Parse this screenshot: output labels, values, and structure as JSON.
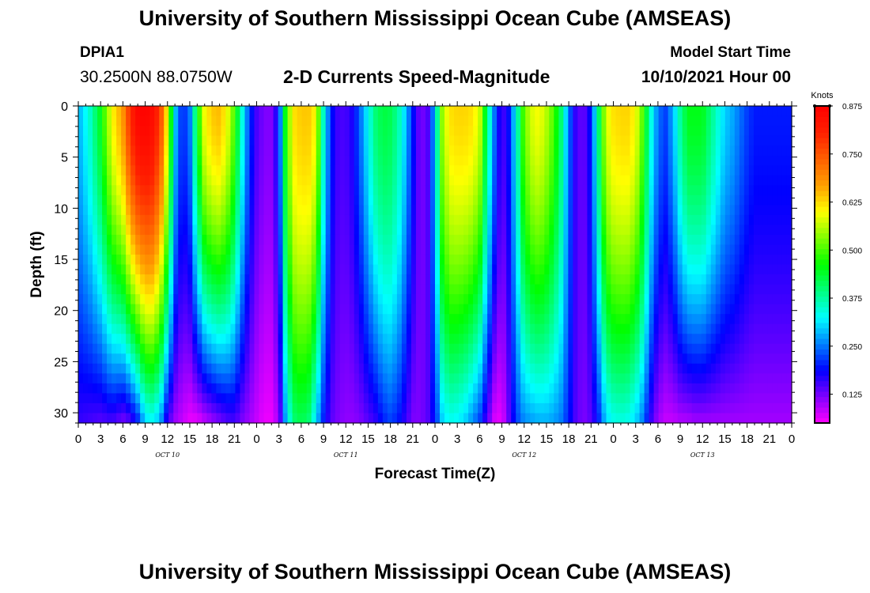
{
  "header": {
    "title": "University of Southern Mississippi Ocean Cube (AMSEAS)",
    "station_id": "DPIA1",
    "station_coords": "30.2500N  88.0750W",
    "product_title": "2-D Currents Speed-Magnitude",
    "model_start_label": "Model Start Time",
    "model_start_value": "10/10/2021 Hour 00"
  },
  "footer": {
    "title": "University of Southern Mississippi Ocean Cube (AMSEAS)"
  },
  "chart_data": {
    "type": "heatmap",
    "title": "2-D Currents Speed-Magnitude",
    "xlabel": "Forecast Time(Z)",
    "ylabel": "Depth (ft)",
    "x_tick_labels": [
      "0",
      "3",
      "6",
      "9",
      "12",
      "15",
      "18",
      "21",
      "0",
      "3",
      "6",
      "9",
      "12",
      "15",
      "18",
      "21",
      "0",
      "3",
      "6",
      "9",
      "12",
      "15",
      "18",
      "21",
      "0",
      "3",
      "6",
      "9",
      "12",
      "15",
      "18",
      "21",
      "0"
    ],
    "date_labels": [
      "OCT 10",
      "OCT 11",
      "OCT 12",
      "OCT 13"
    ],
    "xlim_hours": [
      0,
      96
    ],
    "ylim": [
      0,
      31
    ],
    "y_ticks": [
      0,
      5,
      10,
      15,
      20,
      25,
      30
    ],
    "y_reversed": true,
    "colorbar": {
      "unit": "Knots",
      "range": [
        0.05,
        0.875
      ],
      "ticks": [
        "0.875",
        "0.750",
        "0.625",
        "0.500",
        "0.375",
        "0.250",
        "0.125"
      ],
      "colors": [
        "#ff00ff",
        "#8000ff",
        "#0000ff",
        "#0080ff",
        "#00ffff",
        "#00ff80",
        "#00ff00",
        "#80ff00",
        "#ffff00",
        "#ffa000",
        "#ff6000",
        "#ff2000",
        "#ff0000"
      ]
    },
    "column_profiles": {
      "hours": [
        0,
        1.5,
        3,
        4.5,
        6,
        7,
        8,
        9,
        10,
        11,
        12,
        13,
        14,
        15,
        16,
        17,
        18,
        19,
        20,
        21,
        22,
        23,
        24,
        25,
        26,
        27,
        28,
        29,
        30,
        31,
        32,
        33,
        34,
        35,
        36,
        37,
        38,
        39,
        40,
        41,
        42,
        43,
        44,
        45,
        46,
        47,
        48,
        49,
        50,
        51,
        52,
        53,
        54,
        55,
        56,
        57,
        58,
        59,
        60,
        61,
        62,
        63,
        64,
        65,
        66,
        67,
        68,
        69,
        70,
        71,
        72,
        73,
        74,
        75,
        76,
        77,
        78,
        79,
        80,
        81,
        82,
        83,
        84,
        85,
        86,
        87,
        88,
        89,
        90,
        91,
        92,
        93,
        94,
        95,
        96
      ],
      "surface_knots": [
        0.28,
        0.35,
        0.45,
        0.6,
        0.68,
        0.8,
        0.86,
        0.87,
        0.85,
        0.78,
        0.6,
        0.3,
        0.2,
        0.25,
        0.45,
        0.6,
        0.64,
        0.65,
        0.6,
        0.5,
        0.35,
        0.22,
        0.15,
        0.12,
        0.12,
        0.2,
        0.5,
        0.62,
        0.64,
        0.64,
        0.6,
        0.35,
        0.2,
        0.15,
        0.15,
        0.18,
        0.25,
        0.33,
        0.4,
        0.43,
        0.42,
        0.38,
        0.3,
        0.2,
        0.12,
        0.14,
        0.3,
        0.55,
        0.62,
        0.63,
        0.63,
        0.62,
        0.58,
        0.4,
        0.25,
        0.14,
        0.2,
        0.35,
        0.52,
        0.58,
        0.6,
        0.56,
        0.5,
        0.4,
        0.25,
        0.15,
        0.13,
        0.2,
        0.4,
        0.58,
        0.62,
        0.63,
        0.63,
        0.6,
        0.5,
        0.35,
        0.25,
        0.22,
        0.28,
        0.38,
        0.45,
        0.45,
        0.45,
        0.4,
        0.35,
        0.3,
        0.28,
        0.25,
        0.22,
        0.2,
        0.2,
        0.2,
        0.2,
        0.2,
        0.2
      ],
      "bottom_knots": [
        0.16,
        0.15,
        0.14,
        0.15,
        0.12,
        0.14,
        0.2,
        0.3,
        0.32,
        0.28,
        0.15,
        0.1,
        0.08,
        0.06,
        0.06,
        0.08,
        0.1,
        0.12,
        0.14,
        0.15,
        0.12,
        0.1,
        0.08,
        0.06,
        0.06,
        0.1,
        0.3,
        0.4,
        0.42,
        0.4,
        0.3,
        0.2,
        0.14,
        0.12,
        0.11,
        0.11,
        0.12,
        0.14,
        0.16,
        0.2,
        0.22,
        0.2,
        0.16,
        0.12,
        0.12,
        0.14,
        0.2,
        0.3,
        0.33,
        0.32,
        0.3,
        0.26,
        0.22,
        0.14,
        0.07,
        0.06,
        0.14,
        0.22,
        0.26,
        0.27,
        0.28,
        0.28,
        0.27,
        0.25,
        0.2,
        0.14,
        0.12,
        0.14,
        0.2,
        0.3,
        0.33,
        0.34,
        0.33,
        0.3,
        0.25,
        0.16,
        0.1,
        0.08,
        0.08,
        0.09,
        0.09,
        0.1,
        0.1,
        0.1,
        0.1,
        0.1,
        0.1,
        0.1,
        0.1,
        0.1,
        0.1,
        0.1,
        0.1,
        0.1,
        0.1
      ]
    }
  }
}
